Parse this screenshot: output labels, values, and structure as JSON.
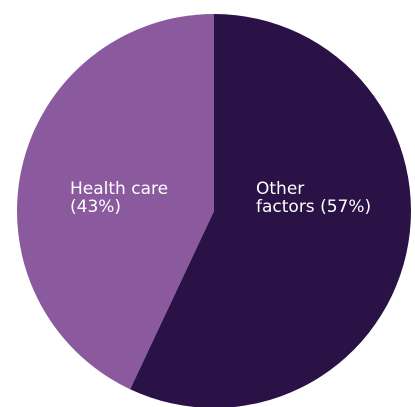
{
  "chart_data": {
    "type": "pie",
    "title": "",
    "start": "top",
    "direction": "clockwise",
    "slices": [
      {
        "label_lines": [
          "Other",
          "factors (57%)"
        ],
        "category": "Other factors",
        "value": 57,
        "color": "#2a1247"
      },
      {
        "label_lines": [
          "Health care",
          "(43%)"
        ],
        "category": "Health care",
        "value": 43,
        "color": "#8b5a9e"
      }
    ]
  }
}
